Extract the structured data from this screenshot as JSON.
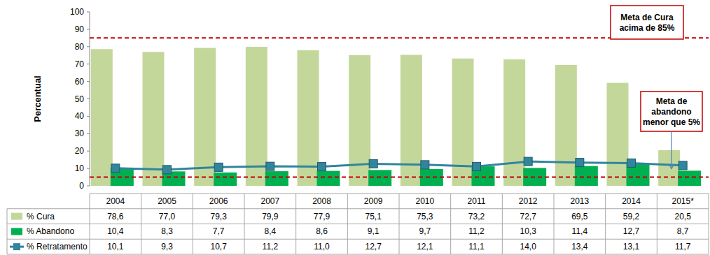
{
  "chart_data": {
    "type": "bar",
    "y_label": "Percentual",
    "categories": [
      "2004",
      "2005",
      "2006",
      "2007",
      "2008",
      "2009",
      "2010",
      "2011",
      "2012",
      "2013",
      "2014",
      "2015*"
    ],
    "series": [
      {
        "name": "% Cura",
        "type": "bar",
        "color": "#c4d79b",
        "values": [
          78.6,
          77.0,
          79.3,
          79.9,
          77.9,
          75.1,
          75.3,
          73.2,
          72.7,
          69.5,
          59.2,
          20.5
        ],
        "value_labels": [
          "78,6",
          "77,0",
          "79,3",
          "79,9",
          "77,9",
          "75,1",
          "75,3",
          "73,2",
          "72,7",
          "69,5",
          "59,2",
          "20,5"
        ]
      },
      {
        "name": "% Abandono",
        "type": "bar",
        "color": "#00b050",
        "values": [
          10.4,
          8.3,
          7.7,
          8.4,
          8.6,
          9.1,
          9.7,
          11.2,
          10.3,
          11.4,
          12.7,
          8.7
        ],
        "value_labels": [
          "10,4",
          "8,3",
          "7,7",
          "8,4",
          "8,6",
          "9,1",
          "9,7",
          "11,2",
          "10,3",
          "11,4",
          "12,7",
          "8,7"
        ]
      },
      {
        "name": "% Retratamento",
        "type": "line",
        "color": "#31859c",
        "marker": "square",
        "line_style": "solid",
        "values": [
          10.1,
          9.3,
          10.7,
          11.2,
          11.0,
          12.7,
          12.1,
          11.1,
          14.0,
          13.4,
          13.1,
          11.7
        ],
        "value_labels": [
          "10,1",
          "9,3",
          "10,7",
          "11,2",
          "11,0",
          "12,7",
          "12,1",
          "11,1",
          "14,0",
          "13,4",
          "13,1",
          "11,7"
        ]
      }
    ],
    "data_labels": true,
    "grid": false,
    "ylim": [
      0,
      100
    ],
    "yticks": [
      0,
      10,
      20,
      30,
      40,
      50,
      60,
      70,
      80,
      90,
      100
    ],
    "annotations": [
      {
        "value": 85,
        "color": "#c00000",
        "line_style": "dashed",
        "lines": [
          "Meta de Cura",
          "acima de 85%"
        ]
      },
      {
        "value": 5,
        "color": "#c00000",
        "line_style": "dashed",
        "lines": [
          "Meta de",
          "abandono",
          "menor que 5%"
        ]
      }
    ]
  }
}
